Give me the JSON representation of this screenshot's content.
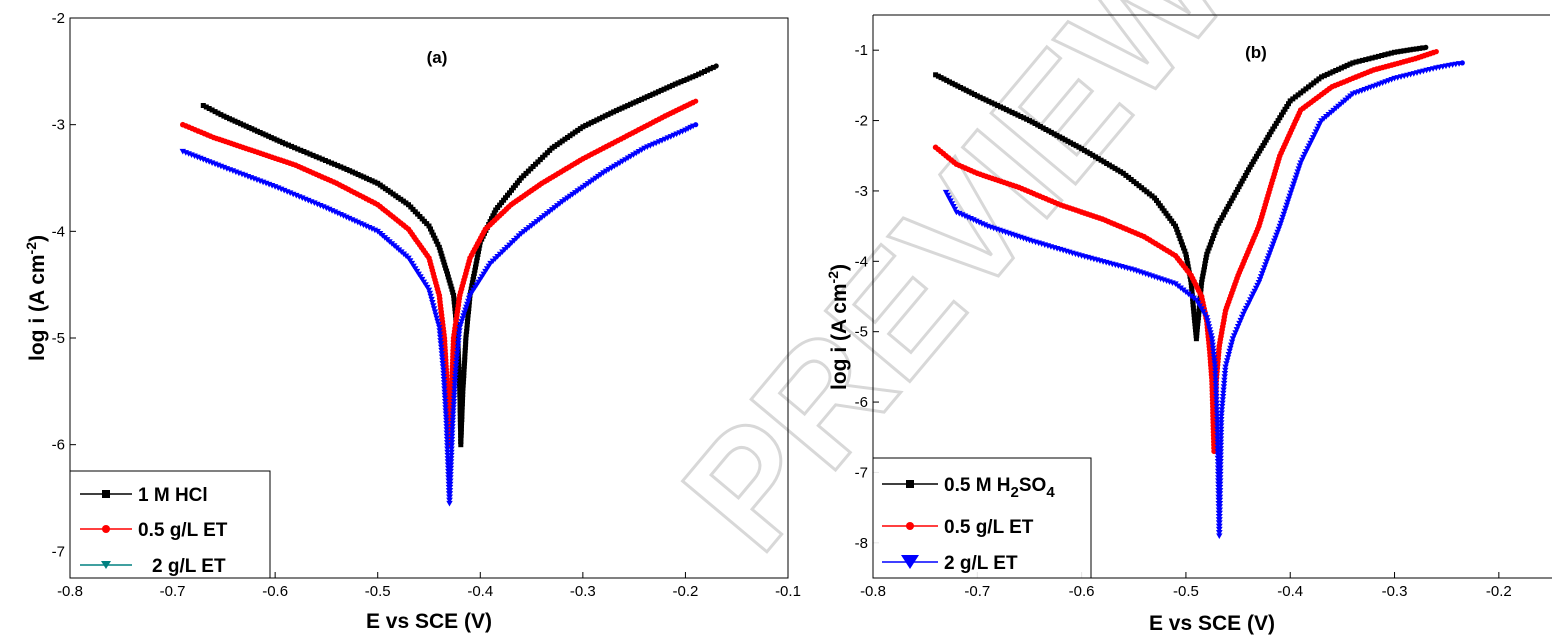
{
  "watermark": "PREVIEW",
  "chart_data": [
    {
      "type": "line",
      "panel_label": "(a)",
      "xlabel": "E vs SCE (V)",
      "ylabel_main": "log i (A cm",
      "ylabel_sup": "-2",
      "ylabel_close": ")",
      "xlim": [
        -0.8,
        -0.1
      ],
      "ylim": [
        -7.25,
        -2.0
      ],
      "xticks": [
        "-0.8",
        "-0.7",
        "-0.6",
        "-0.5",
        "-0.4",
        "-0.3",
        "-0.2",
        "-0.1"
      ],
      "xtick_values": [
        -0.8,
        -0.7,
        -0.6,
        -0.5,
        -0.4,
        -0.3,
        -0.2,
        -0.1
      ],
      "yticks": [
        "-7",
        "-6",
        "-5",
        "-4",
        "-3",
        "-2"
      ],
      "ytick_values": [
        -7,
        -6,
        -5,
        -4,
        -3,
        -2
      ],
      "legend_position": "bottom-left",
      "series": [
        {
          "name": "1 M HCl",
          "name_main": "1 M HCl",
          "color": "#000000",
          "marker": "square",
          "points": [
            [
              -0.67,
              -2.82
            ],
            [
              -0.65,
              -2.92
            ],
            [
              -0.62,
              -3.05
            ],
            [
              -0.59,
              -3.18
            ],
            [
              -0.56,
              -3.3
            ],
            [
              -0.53,
              -3.42
            ],
            [
              -0.5,
              -3.55
            ],
            [
              -0.47,
              -3.75
            ],
            [
              -0.45,
              -3.95
            ],
            [
              -0.44,
              -4.15
            ],
            [
              -0.432,
              -4.4
            ],
            [
              -0.426,
              -4.6
            ],
            [
              -0.422,
              -5.0
            ],
            [
              -0.42,
              -5.5
            ],
            [
              -0.419,
              -6.0
            ],
            [
              -0.417,
              -5.5
            ],
            [
              -0.414,
              -5.0
            ],
            [
              -0.41,
              -4.6
            ],
            [
              -0.4,
              -4.1
            ],
            [
              -0.385,
              -3.8
            ],
            [
              -0.36,
              -3.5
            ],
            [
              -0.33,
              -3.22
            ],
            [
              -0.3,
              -3.02
            ],
            [
              -0.27,
              -2.88
            ],
            [
              -0.24,
              -2.75
            ],
            [
              -0.21,
              -2.62
            ],
            [
              -0.19,
              -2.54
            ],
            [
              -0.17,
              -2.45
            ]
          ]
        },
        {
          "name": "0.5 g/L ET",
          "name_main": "0.5 g/L ET",
          "color": "#ff0000",
          "marker": "circle",
          "points": [
            [
              -0.69,
              -3.0
            ],
            [
              -0.66,
              -3.12
            ],
            [
              -0.62,
              -3.25
            ],
            [
              -0.58,
              -3.38
            ],
            [
              -0.54,
              -3.55
            ],
            [
              -0.5,
              -3.75
            ],
            [
              -0.47,
              -3.98
            ],
            [
              -0.45,
              -4.25
            ],
            [
              -0.44,
              -4.6
            ],
            [
              -0.435,
              -5.0
            ],
            [
              -0.432,
              -5.5
            ],
            [
              -0.43,
              -6.0
            ],
            [
              -0.428,
              -5.5
            ],
            [
              -0.426,
              -5.0
            ],
            [
              -0.42,
              -4.6
            ],
            [
              -0.41,
              -4.25
            ],
            [
              -0.395,
              -3.98
            ],
            [
              -0.37,
              -3.75
            ],
            [
              -0.34,
              -3.55
            ],
            [
              -0.3,
              -3.32
            ],
            [
              -0.26,
              -3.12
            ],
            [
              -0.22,
              -2.92
            ],
            [
              -0.19,
              -2.78
            ]
          ]
        },
        {
          "name": "2 g/L ET",
          "name_main": "2 g/L ET",
          "color": "#0000ff",
          "legend_color": "#008080",
          "marker": "triangle-down",
          "points": [
            [
              -0.69,
              -3.25
            ],
            [
              -0.65,
              -3.4
            ],
            [
              -0.6,
              -3.58
            ],
            [
              -0.55,
              -3.78
            ],
            [
              -0.5,
              -4.0
            ],
            [
              -0.47,
              -4.25
            ],
            [
              -0.45,
              -4.55
            ],
            [
              -0.44,
              -4.9
            ],
            [
              -0.436,
              -5.3
            ],
            [
              -0.433,
              -5.8
            ],
            [
              -0.43,
              -6.55
            ],
            [
              -0.427,
              -5.8
            ],
            [
              -0.424,
              -5.3
            ],
            [
              -0.42,
              -4.9
            ],
            [
              -0.41,
              -4.6
            ],
            [
              -0.39,
              -4.3
            ],
            [
              -0.36,
              -4.02
            ],
            [
              -0.32,
              -3.72
            ],
            [
              -0.28,
              -3.45
            ],
            [
              -0.24,
              -3.22
            ],
            [
              -0.2,
              -3.05
            ],
            [
              -0.19,
              -3.0
            ]
          ]
        }
      ]
    },
    {
      "type": "line",
      "panel_label": "(b)",
      "xlabel": "E vs SCE (V)",
      "ylabel_main": "log i (A cm",
      "ylabel_sup": "-2",
      "ylabel_close": ")",
      "xlim": [
        -0.8,
        -0.15
      ],
      "ylim": [
        -8.5,
        -0.5
      ],
      "xticks": [
        "-0.8",
        "-0.7",
        "-0.6",
        "-0.5",
        "-0.4",
        "-0.3",
        "-0.2"
      ],
      "xtick_values": [
        -0.8,
        -0.7,
        -0.6,
        -0.5,
        -0.4,
        -0.3,
        -0.2
      ],
      "yticks": [
        "-8",
        "-7",
        "-6",
        "-5",
        "-4",
        "-3",
        "-2",
        "-1"
      ],
      "ytick_values": [
        -8,
        -7,
        -6,
        -5,
        -4,
        -3,
        -2,
        -1
      ],
      "legend_position": "bottom-left",
      "series": [
        {
          "name": "0.5 M H2SO4",
          "name_main": "0.5 M H",
          "name_sub1": "2",
          "name_mid": "SO",
          "name_sub2": "4",
          "color": "#000000",
          "marker": "square",
          "points": [
            [
              -0.74,
              -1.35
            ],
            [
              -0.7,
              -1.65
            ],
            [
              -0.65,
              -2.0
            ],
            [
              -0.6,
              -2.4
            ],
            [
              -0.56,
              -2.75
            ],
            [
              -0.53,
              -3.1
            ],
            [
              -0.51,
              -3.5
            ],
            [
              -0.5,
              -3.9
            ],
            [
              -0.495,
              -4.3
            ],
            [
              -0.492,
              -4.8
            ],
            [
              -0.49,
              -5.1
            ],
            [
              -0.488,
              -4.8
            ],
            [
              -0.485,
              -4.3
            ],
            [
              -0.48,
              -3.9
            ],
            [
              -0.47,
              -3.5
            ],
            [
              -0.455,
              -3.1
            ],
            [
              -0.44,
              -2.7
            ],
            [
              -0.42,
              -2.2
            ],
            [
              -0.4,
              -1.72
            ],
            [
              -0.37,
              -1.38
            ],
            [
              -0.34,
              -1.18
            ],
            [
              -0.3,
              -1.03
            ],
            [
              -0.27,
              -0.96
            ]
          ]
        },
        {
          "name": "0.5 g/L ET",
          "name_main": "0.5 g/L ET",
          "color": "#ff0000",
          "marker": "circle",
          "points": [
            [
              -0.74,
              -2.38
            ],
            [
              -0.72,
              -2.62
            ],
            [
              -0.7,
              -2.75
            ],
            [
              -0.66,
              -2.95
            ],
            [
              -0.62,
              -3.2
            ],
            [
              -0.58,
              -3.4
            ],
            [
              -0.54,
              -3.65
            ],
            [
              -0.51,
              -3.92
            ],
            [
              -0.495,
              -4.2
            ],
            [
              -0.485,
              -4.5
            ],
            [
              -0.48,
              -4.85
            ],
            [
              -0.477,
              -5.3
            ],
            [
              -0.475,
              -5.7
            ],
            [
              -0.473,
              -6.7
            ],
            [
              -0.471,
              -5.7
            ],
            [
              -0.468,
              -5.2
            ],
            [
              -0.462,
              -4.7
            ],
            [
              -0.45,
              -4.2
            ],
            [
              -0.43,
              -3.5
            ],
            [
              -0.41,
              -2.5
            ],
            [
              -0.39,
              -1.85
            ],
            [
              -0.36,
              -1.52
            ],
            [
              -0.32,
              -1.28
            ],
            [
              -0.28,
              -1.12
            ],
            [
              -0.26,
              -1.02
            ]
          ]
        },
        {
          "name": "2 g/L ET",
          "name_main": "2 g/L ET",
          "color": "#0000ff",
          "marker": "triangle-down",
          "points": [
            [
              -0.73,
              -3.02
            ],
            [
              -0.72,
              -3.3
            ],
            [
              -0.69,
              -3.5
            ],
            [
              -0.65,
              -3.7
            ],
            [
              -0.6,
              -3.92
            ],
            [
              -0.55,
              -4.12
            ],
            [
              -0.51,
              -4.32
            ],
            [
              -0.49,
              -4.55
            ],
            [
              -0.48,
              -4.8
            ],
            [
              -0.475,
              -5.1
            ],
            [
              -0.472,
              -5.5
            ],
            [
              -0.47,
              -6.2
            ],
            [
              -0.468,
              -7.9
            ],
            [
              -0.466,
              -6.2
            ],
            [
              -0.462,
              -5.5
            ],
            [
              -0.455,
              -5.1
            ],
            [
              -0.445,
              -4.75
            ],
            [
              -0.43,
              -4.3
            ],
            [
              -0.41,
              -3.5
            ],
            [
              -0.39,
              -2.6
            ],
            [
              -0.37,
              -2.0
            ],
            [
              -0.34,
              -1.62
            ],
            [
              -0.3,
              -1.4
            ],
            [
              -0.26,
              -1.25
            ],
            [
              -0.235,
              -1.18
            ]
          ]
        }
      ]
    }
  ]
}
